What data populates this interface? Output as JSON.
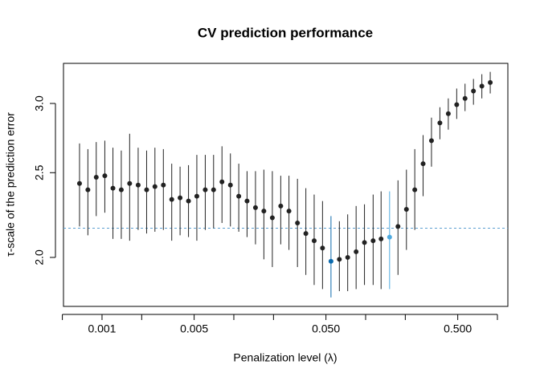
{
  "chart_data": {
    "type": "scatter",
    "title": "CV prediction performance",
    "x_label": "Penalization level (λ)",
    "y_label": "τ-scale of the prediction error",
    "x_log": true,
    "y_log": true,
    "xlim": [
      0.00051,
      1.2
    ],
    "ylim": [
      1.758,
      3.334
    ],
    "xticks": [
      {
        "value": 0.001,
        "label": "0.001"
      },
      {
        "value": 0.005,
        "label": "0.005"
      },
      {
        "value": 0.05,
        "label": "0.050"
      },
      {
        "value": 0.5,
        "label": "0.500"
      }
    ],
    "xminorticks": [
      0.0005,
      0.002,
      0.01,
      0.02,
      0.1,
      0.2,
      1
    ],
    "yticks": [
      {
        "value": 2,
        "label": "2.0"
      },
      {
        "value": 2.5,
        "label": "2.5"
      },
      {
        "value": 3,
        "label": "3.0"
      }
    ],
    "color": "#222222",
    "hline": 2.16,
    "hline_color": "#5a9fd0",
    "x": [
      0.000675,
      0.000781,
      0.000904,
      0.00105,
      0.00121,
      0.0014,
      0.00162,
      0.00188,
      0.00218,
      0.00252,
      0.00292,
      0.00338,
      0.00391,
      0.00453,
      0.00524,
      0.00607,
      0.00702,
      0.00813,
      0.00942,
      0.0109,
      0.0126,
      0.0146,
      0.0169,
      0.0196,
      0.0227,
      0.0262,
      0.0304,
      0.0352,
      0.0407,
      0.0471,
      0.0546,
      0.0632,
      0.0731,
      0.0847,
      0.098,
      0.114,
      0.131,
      0.152,
      0.176,
      0.204,
      0.236,
      0.273,
      0.316,
      0.366,
      0.424,
      0.491,
      0.568,
      0.658,
      0.762,
      0.882
    ],
    "values": [
      2.43,
      2.39,
      2.47,
      2.48,
      2.4,
      2.39,
      2.43,
      2.42,
      2.39,
      2.41,
      2.42,
      2.33,
      2.34,
      2.32,
      2.35,
      2.39,
      2.39,
      2.44,
      2.42,
      2.35,
      2.32,
      2.28,
      2.26,
      2.22,
      2.29,
      2.26,
      2.19,
      2.13,
      2.09,
      2.05,
      1.98,
      1.99,
      2.0,
      2.03,
      2.08,
      2.09,
      2.1,
      2.11,
      2.17,
      2.27,
      2.39,
      2.56,
      2.72,
      2.85,
      2.92,
      2.99,
      3.04,
      3.1,
      3.14,
      3.17
    ],
    "lower": [
      2.17,
      2.12,
      2.23,
      2.25,
      2.1,
      2.1,
      2.09,
      2.15,
      2.13,
      2.14,
      2.15,
      2.09,
      2.12,
      2.11,
      2.09,
      2.15,
      2.16,
      2.19,
      2.17,
      2.14,
      2.11,
      2.07,
      1.99,
      1.95,
      2.07,
      2.04,
      1.95,
      1.91,
      1.86,
      1.84,
      1.8,
      1.83,
      1.83,
      1.84,
      1.86,
      1.86,
      1.84,
      1.84,
      1.91,
      2.04,
      2.15,
      2.35,
      2.54,
      2.73,
      2.8,
      2.88,
      2.94,
      2.99,
      3.04,
      3.08
    ],
    "upper": [
      2.7,
      2.66,
      2.71,
      2.72,
      2.67,
      2.65,
      2.77,
      2.67,
      2.65,
      2.67,
      2.66,
      2.56,
      2.54,
      2.55,
      2.62,
      2.62,
      2.62,
      2.68,
      2.63,
      2.56,
      2.51,
      2.51,
      2.52,
      2.51,
      2.48,
      2.48,
      2.46,
      2.4,
      2.36,
      2.32,
      2.23,
      2.2,
      2.24,
      2.29,
      2.3,
      2.36,
      2.38,
      2.38,
      2.45,
      2.52,
      2.66,
      2.76,
      2.89,
      2.97,
      3.04,
      3.12,
      3.16,
      3.2,
      3.24,
      3.26
    ],
    "point_colors": [
      "#222222",
      "#222222",
      "#222222",
      "#222222",
      "#222222",
      "#222222",
      "#222222",
      "#222222",
      "#222222",
      "#222222",
      "#222222",
      "#222222",
      "#222222",
      "#222222",
      "#222222",
      "#222222",
      "#222222",
      "#222222",
      "#222222",
      "#222222",
      "#222222",
      "#222222",
      "#222222",
      "#222222",
      "#222222",
      "#222222",
      "#222222",
      "#222222",
      "#222222",
      "#222222",
      "#0b6aad",
      "#222222",
      "#222222",
      "#222222",
      "#222222",
      "#222222",
      "#222222",
      "#4eaae0",
      "#222222",
      "#222222",
      "#222222",
      "#222222",
      "#222222",
      "#222222",
      "#222222",
      "#222222",
      "#222222",
      "#222222",
      "#222222",
      "#222222"
    ]
  }
}
